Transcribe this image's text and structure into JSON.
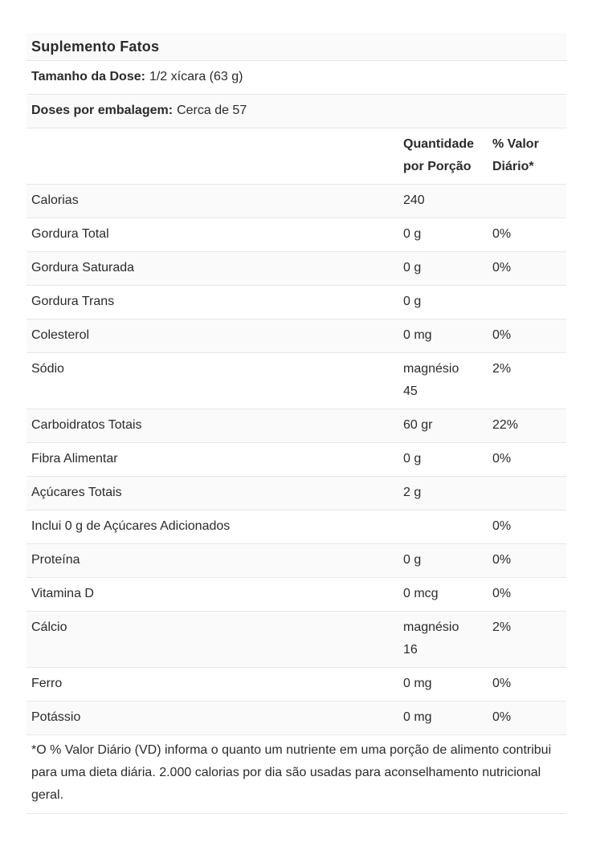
{
  "table": {
    "title": "Suplemento Fatos",
    "serving_size": {
      "label": "Tamanho da Dose:",
      "value": "1/2 xícara (63 g)"
    },
    "servings_per_container": {
      "label": "Doses por embalagem:",
      "value": "Cerca de 57"
    },
    "columns": {
      "amount_header": "Quantidade por Porção",
      "daily_value_header": "% Valor Diário*"
    },
    "rows": [
      {
        "label": "Calorias",
        "amount": "240",
        "dv": ""
      },
      {
        "label": "Gordura Total",
        "amount": "0 g",
        "dv": "0%"
      },
      {
        "label": "Gordura Saturada",
        "amount": "0 g",
        "dv": "0%"
      },
      {
        "label": "Gordura Trans",
        "amount": "0 g",
        "dv": ""
      },
      {
        "label": "Colesterol",
        "amount": "0 mg",
        "dv": "0%"
      },
      {
        "label": "Sódio",
        "amount": "magnésio 45",
        "dv": "2%"
      },
      {
        "label": "Carboidratos Totais",
        "amount": "60 gr",
        "dv": "22%"
      },
      {
        "label": "Fibra Alimentar",
        "amount": "0 g",
        "dv": "0%"
      },
      {
        "label": "Açúcares Totais",
        "amount": "2 g",
        "dv": ""
      },
      {
        "label": "Inclui 0 g de Açúcares Adicionados",
        "amount": "",
        "dv": "0%"
      },
      {
        "label": "Proteína",
        "amount": "0 g",
        "dv": "0%"
      },
      {
        "label": "Vitamina D",
        "amount": "0 mcg",
        "dv": "0%"
      },
      {
        "label": "Cálcio",
        "amount": "magnésio 16",
        "dv": "2%"
      },
      {
        "label": "Ferro",
        "amount": "0 mg",
        "dv": "0%"
      },
      {
        "label": "Potássio",
        "amount": "0 mg",
        "dv": "0%"
      }
    ],
    "footnote": "*O % Valor Diário (VD) informa o quanto um nutriente em uma porção de alimento contribui para uma dieta diária. 2.000 calorias por dia são usadas para aconselhamento nutricional geral."
  },
  "colors": {
    "background": "#ffffff",
    "row_shade": "#fafafa",
    "divider": "#e7e7e7",
    "text": "#2b2b2b"
  }
}
